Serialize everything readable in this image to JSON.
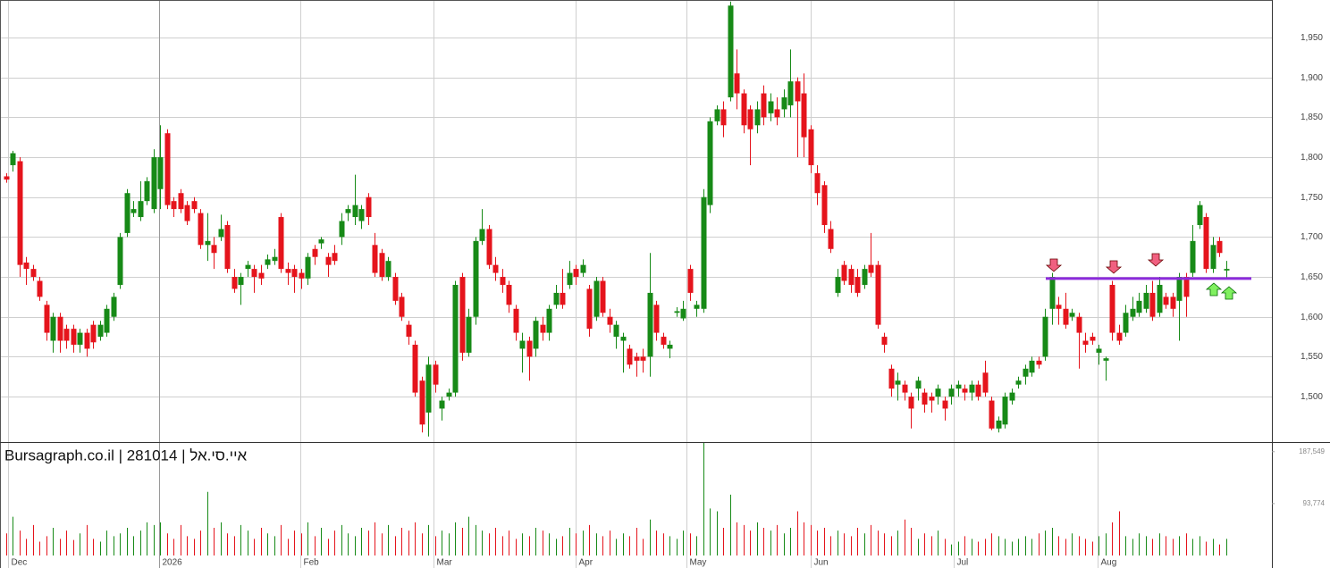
{
  "chart_data": {
    "type": "candlestick",
    "watermark": "Bursagraph.co.il | 281014 | איי.סי.אל",
    "up_color": "#178a17",
    "down_color": "#e5141c",
    "grid": true,
    "level": {
      "value": 1648,
      "color": "#8c2bdc"
    },
    "xlim": [
      -0.93,
      188.8
    ],
    "xticks": [
      {
        "value": 0.3,
        "label": "Dec"
      },
      {
        "value": 22.8,
        "label": "2026"
      },
      {
        "value": 43.9,
        "label": "Feb"
      },
      {
        "value": 63.7,
        "label": "Mar"
      },
      {
        "value": 85,
        "label": "Apr"
      },
      {
        "value": 101.5,
        "label": "May"
      },
      {
        "value": 120,
        "label": "Jun"
      },
      {
        "value": 141.4,
        "label": "Jul"
      },
      {
        "value": 162.8,
        "label": "Aug"
      }
    ],
    "ylim": [
      1443,
      1997
    ],
    "yticks": [
      {
        "value": 1500,
        "label": "1,500"
      },
      {
        "value": 1550,
        "label": "1,550"
      },
      {
        "value": 1600,
        "label": "1,600"
      },
      {
        "value": 1650,
        "label": "1,650"
      },
      {
        "value": 1700,
        "label": "1,700"
      },
      {
        "value": 1750,
        "label": "1,750"
      },
      {
        "value": 1800,
        "label": "1,800"
      },
      {
        "value": 1850,
        "label": "1,850"
      },
      {
        "value": 1900,
        "label": "1,900"
      },
      {
        "value": 1950,
        "label": "1,950"
      }
    ],
    "volume_ylim": [
      0,
      205000
    ],
    "volume_yticks": [
      {
        "value": 93774,
        "label": "93,774"
      },
      {
        "value": 187549,
        "label": "187,549"
      }
    ],
    "ohlc": [
      [
        1776,
        1780,
        1768,
        1772
      ],
      [
        1790,
        1808,
        1782,
        1805
      ],
      [
        1795,
        1800,
        1650,
        1665
      ],
      [
        1668,
        1675,
        1640,
        1660
      ],
      [
        1660,
        1665,
        1645,
        1650
      ],
      [
        1645,
        1650,
        1620,
        1625
      ],
      [
        1615,
        1620,
        1570,
        1580
      ],
      [
        1570,
        1605,
        1555,
        1600
      ],
      [
        1600,
        1605,
        1555,
        1570
      ],
      [
        1585,
        1590,
        1560,
        1570
      ],
      [
        1585,
        1590,
        1555,
        1565
      ],
      [
        1565,
        1585,
        1555,
        1580
      ],
      [
        1580,
        1585,
        1550,
        1560
      ],
      [
        1590,
        1595,
        1560,
        1568
      ],
      [
        1575,
        1595,
        1570,
        1590
      ],
      [
        1580,
        1615,
        1575,
        1610
      ],
      [
        1600,
        1630,
        1595,
        1625
      ],
      [
        1640,
        1705,
        1635,
        1700
      ],
      [
        1705,
        1760,
        1700,
        1755
      ],
      [
        1730,
        1745,
        1725,
        1735
      ],
      [
        1725,
        1770,
        1720,
        1745
      ],
      [
        1745,
        1775,
        1740,
        1770
      ],
      [
        1735,
        1810,
        1730,
        1800
      ],
      [
        1760,
        1840,
        1735,
        1800
      ],
      [
        1830,
        1835,
        1735,
        1740
      ],
      [
        1745,
        1750,
        1725,
        1735
      ],
      [
        1755,
        1760,
        1730,
        1735
      ],
      [
        1740,
        1745,
        1715,
        1720
      ],
      [
        1745,
        1750,
        1730,
        1735
      ],
      [
        1730,
        1735,
        1685,
        1690
      ],
      [
        1690,
        1730,
        1670,
        1695
      ],
      [
        1690,
        1700,
        1660,
        1680
      ],
      [
        1700,
        1728,
        1695,
        1710
      ],
      [
        1715,
        1720,
        1655,
        1660
      ],
      [
        1650,
        1660,
        1630,
        1635
      ],
      [
        1640,
        1655,
        1615,
        1650
      ],
      [
        1660,
        1670,
        1650,
        1665
      ],
      [
        1660,
        1665,
        1630,
        1650
      ],
      [
        1655,
        1665,
        1640,
        1648
      ],
      [
        1665,
        1678,
        1660,
        1672
      ],
      [
        1670,
        1685,
        1665,
        1675
      ],
      [
        1725,
        1730,
        1655,
        1660
      ],
      [
        1660,
        1668,
        1640,
        1655
      ],
      [
        1660,
        1665,
        1630,
        1650
      ],
      [
        1655,
        1660,
        1635,
        1648
      ],
      [
        1648,
        1680,
        1640,
        1675
      ],
      [
        1685,
        1690,
        1665,
        1675
      ],
      [
        1692,
        1700,
        1685,
        1697
      ],
      [
        1675,
        1680,
        1650,
        1665
      ],
      [
        1680,
        1690,
        1665,
        1670
      ],
      [
        1700,
        1730,
        1690,
        1720
      ],
      [
        1730,
        1740,
        1720,
        1735
      ],
      [
        1725,
        1778,
        1715,
        1740
      ],
      [
        1720,
        1740,
        1710,
        1735
      ],
      [
        1750,
        1755,
        1715,
        1725
      ],
      [
        1690,
        1705,
        1650,
        1655
      ],
      [
        1680,
        1685,
        1645,
        1650
      ],
      [
        1650,
        1675,
        1645,
        1670
      ],
      [
        1650,
        1655,
        1615,
        1620
      ],
      [
        1625,
        1630,
        1595,
        1600
      ],
      [
        1590,
        1595,
        1565,
        1575
      ],
      [
        1565,
        1570,
        1500,
        1505
      ],
      [
        1520,
        1525,
        1455,
        1465
      ],
      [
        1480,
        1550,
        1450,
        1540
      ],
      [
        1540,
        1545,
        1505,
        1515
      ],
      [
        1485,
        1500,
        1470,
        1495
      ],
      [
        1500,
        1510,
        1495,
        1505
      ],
      [
        1505,
        1645,
        1500,
        1640
      ],
      [
        1650,
        1655,
        1545,
        1555
      ],
      [
        1555,
        1610,
        1550,
        1600
      ],
      [
        1600,
        1700,
        1590,
        1695
      ],
      [
        1695,
        1735,
        1690,
        1710
      ],
      [
        1710,
        1715,
        1660,
        1665
      ],
      [
        1665,
        1675,
        1645,
        1655
      ],
      [
        1650,
        1660,
        1630,
        1640
      ],
      [
        1640,
        1645,
        1605,
        1615
      ],
      [
        1610,
        1615,
        1570,
        1580
      ],
      [
        1560,
        1580,
        1530,
        1570
      ],
      [
        1570,
        1575,
        1520,
        1550
      ],
      [
        1560,
        1600,
        1550,
        1595
      ],
      [
        1590,
        1600,
        1570,
        1580
      ],
      [
        1580,
        1615,
        1570,
        1610
      ],
      [
        1615,
        1640,
        1610,
        1630
      ],
      [
        1630,
        1660,
        1610,
        1615
      ],
      [
        1640,
        1670,
        1635,
        1655
      ],
      [
        1660,
        1665,
        1640,
        1650
      ],
      [
        1655,
        1672,
        1650,
        1665
      ],
      [
        1635,
        1640,
        1575,
        1585
      ],
      [
        1600,
        1650,
        1595,
        1645
      ],
      [
        1645,
        1650,
        1600,
        1605
      ],
      [
        1600,
        1610,
        1580,
        1590
      ],
      [
        1575,
        1595,
        1560,
        1590
      ],
      [
        1570,
        1580,
        1530,
        1575
      ],
      [
        1560,
        1565,
        1535,
        1540
      ],
      [
        1550,
        1555,
        1525,
        1545
      ],
      [
        1550,
        1560,
        1530,
        1545
      ],
      [
        1550,
        1680,
        1525,
        1630
      ],
      [
        1615,
        1620,
        1570,
        1580
      ],
      [
        1575,
        1580,
        1560,
        1565
      ],
      [
        1560,
        1570,
        1548,
        1565
      ],
      [
        1605,
        1612,
        1600,
        1607
      ],
      [
        1598,
        1620,
        1595,
        1610
      ],
      [
        1660,
        1665,
        1620,
        1630
      ],
      [
        1610,
        1620,
        1600,
        1615
      ],
      [
        1610,
        1760,
        1605,
        1750
      ],
      [
        1740,
        1850,
        1730,
        1845
      ],
      [
        1845,
        1865,
        1840,
        1860
      ],
      [
        1860,
        1870,
        1825,
        1840
      ],
      [
        1875,
        1995,
        1870,
        1990
      ],
      [
        1905,
        1935,
        1860,
        1880
      ],
      [
        1880,
        1885,
        1830,
        1840
      ],
      [
        1860,
        1865,
        1790,
        1835
      ],
      [
        1840,
        1870,
        1830,
        1860
      ],
      [
        1880,
        1890,
        1840,
        1850
      ],
      [
        1855,
        1880,
        1845,
        1870
      ],
      [
        1860,
        1875,
        1840,
        1850
      ],
      [
        1860,
        1885,
        1850,
        1875
      ],
      [
        1865,
        1935,
        1850,
        1895
      ],
      [
        1895,
        1900,
        1800,
        1870
      ],
      [
        1880,
        1905,
        1800,
        1825
      ],
      [
        1835,
        1840,
        1780,
        1790
      ],
      [
        1780,
        1790,
        1740,
        1755
      ],
      [
        1765,
        1770,
        1705,
        1715
      ],
      [
        1710,
        1720,
        1680,
        1685
      ],
      [
        1630,
        1660,
        1625,
        1650
      ],
      [
        1665,
        1670,
        1640,
        1645
      ],
      [
        1660,
        1665,
        1630,
        1640
      ],
      [
        1650,
        1660,
        1625,
        1630
      ],
      [
        1640,
        1665,
        1635,
        1660
      ],
      [
        1665,
        1705,
        1650,
        1655
      ],
      [
        1665,
        1670,
        1585,
        1590
      ],
      [
        1575,
        1580,
        1555,
        1565
      ],
      [
        1535,
        1540,
        1500,
        1510
      ],
      [
        1515,
        1530,
        1495,
        1520
      ],
      [
        1515,
        1520,
        1495,
        1505
      ],
      [
        1500,
        1505,
        1460,
        1485
      ],
      [
        1510,
        1525,
        1495,
        1520
      ],
      [
        1505,
        1510,
        1480,
        1490
      ],
      [
        1500,
        1505,
        1480,
        1495
      ],
      [
        1500,
        1515,
        1490,
        1510
      ],
      [
        1495,
        1500,
        1470,
        1485
      ],
      [
        1500,
        1515,
        1490,
        1510
      ],
      [
        1510,
        1520,
        1500,
        1515
      ],
      [
        1510,
        1515,
        1495,
        1505
      ],
      [
        1505,
        1520,
        1495,
        1515
      ],
      [
        1515,
        1520,
        1495,
        1500
      ],
      [
        1530,
        1545,
        1500,
        1505
      ],
      [
        1495,
        1500,
        1458,
        1460
      ],
      [
        1460,
        1475,
        1455,
        1470
      ],
      [
        1465,
        1505,
        1460,
        1500
      ],
      [
        1495,
        1510,
        1490,
        1505
      ],
      [
        1515,
        1525,
        1510,
        1520
      ],
      [
        1525,
        1540,
        1515,
        1535
      ],
      [
        1530,
        1550,
        1525,
        1545
      ],
      [
        1545,
        1550,
        1535,
        1540
      ],
      [
        1550,
        1610,
        1545,
        1600
      ],
      [
        1610,
        1655,
        1590,
        1650
      ],
      [
        1615,
        1625,
        1590,
        1610
      ],
      [
        1610,
        1630,
        1585,
        1590
      ],
      [
        1600,
        1610,
        1595,
        1605
      ],
      [
        1600,
        1605,
        1535,
        1580
      ],
      [
        1570,
        1580,
        1555,
        1565
      ],
      [
        1575,
        1580,
        1565,
        1570
      ],
      [
        1555,
        1565,
        1540,
        1560
      ],
      [
        1545,
        1550,
        1520,
        1548
      ],
      [
        1640,
        1645,
        1570,
        1580
      ],
      [
        1580,
        1590,
        1565,
        1570
      ],
      [
        1580,
        1615,
        1575,
        1605
      ],
      [
        1600,
        1625,
        1595,
        1610
      ],
      [
        1605,
        1630,
        1600,
        1620
      ],
      [
        1610,
        1640,
        1605,
        1630
      ],
      [
        1630,
        1645,
        1595,
        1600
      ],
      [
        1605,
        1650,
        1600,
        1640
      ],
      [
        1625,
        1630,
        1610,
        1615
      ],
      [
        1625,
        1630,
        1600,
        1610
      ],
      [
        1620,
        1655,
        1570,
        1650
      ],
      [
        1650,
        1655,
        1600,
        1625
      ],
      [
        1655,
        1715,
        1650,
        1695
      ],
      [
        1715,
        1745,
        1710,
        1740
      ],
      [
        1725,
        1730,
        1655,
        1660
      ],
      [
        1660,
        1700,
        1655,
        1690
      ],
      [
        1695,
        1700,
        1675,
        1680
      ],
      [
        1658,
        1670,
        1648,
        1660
      ]
    ],
    "volume": [
      40000,
      70000,
      45000,
      30000,
      55000,
      25000,
      35000,
      50000,
      30000,
      45000,
      28000,
      40000,
      55000,
      30000,
      25000,
      45000,
      35000,
      40000,
      50000,
      35000,
      45000,
      60000,
      55000,
      60000,
      40000,
      30000,
      55000,
      35000,
      30000,
      45000,
      115000,
      50000,
      60000,
      40000,
      35000,
      55000,
      45000,
      30000,
      50000,
      40000,
      35000,
      55000,
      30000,
      45000,
      40000,
      60000,
      35000,
      50000,
      30000,
      45000,
      55000,
      40000,
      35000,
      50000,
      45000,
      60000,
      40000,
      55000,
      35000,
      50000,
      45000,
      60000,
      40000,
      55000,
      35000,
      45000,
      40000,
      60000,
      50000,
      70000,
      55000,
      45000,
      40000,
      50000,
      35000,
      45000,
      30000,
      40000,
      35000,
      50000,
      45000,
      40000,
      30000,
      35000,
      50000,
      40000,
      45000,
      55000,
      40000,
      35000,
      45000,
      30000,
      40000,
      35000,
      50000,
      30000,
      65000,
      45000,
      40000,
      35000,
      30000,
      45000,
      40000,
      35000,
      205000,
      85000,
      80000,
      50000,
      110000,
      60000,
      55000,
      45000,
      60000,
      50000,
      45000,
      55000,
      40000,
      50000,
      80000,
      60000,
      55000,
      45000,
      50000,
      35000,
      45000,
      40000,
      35000,
      50000,
      40000,
      55000,
      45000,
      40000,
      35000,
      45000,
      65000,
      50000,
      30000,
      40000,
      35000,
      45000,
      30000,
      20000,
      25000,
      35000,
      30000,
      25000,
      30000,
      40000,
      35000,
      30000,
      25000,
      30000,
      35000,
      30000,
      40000,
      45000,
      50000,
      35000,
      30000,
      40000,
      35000,
      30000,
      25000,
      35000,
      40000,
      60000,
      80000,
      35000,
      30000,
      40000,
      35000,
      30000,
      40000,
      35000,
      30000,
      35000,
      40000,
      30000,
      35000,
      25000,
      30000,
      20000,
      30000
    ]
  }
}
